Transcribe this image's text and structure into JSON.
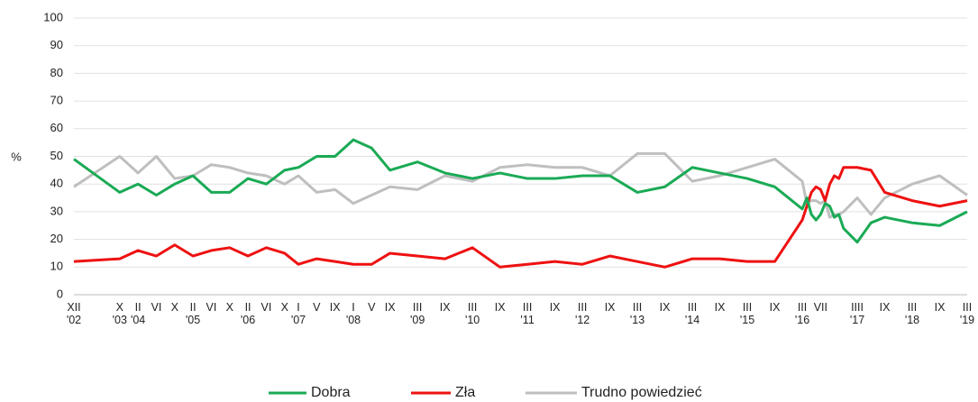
{
  "chart_data": {
    "type": "line",
    "ylabel": "%",
    "x": [
      2002.917,
      2003.75,
      2004.083,
      2004.417,
      2004.75,
      2005.083,
      2005.417,
      2005.75,
      2006.083,
      2006.417,
      2006.75,
      2007.0,
      2007.333,
      2007.667,
      2008.0,
      2008.333,
      2008.667,
      2009.167,
      2009.667,
      2010.167,
      2010.667,
      2011.167,
      2011.667,
      2012.167,
      2012.667,
      2013.167,
      2013.667,
      2014.167,
      2014.667,
      2015.167,
      2015.667,
      2016.167,
      2016.25,
      2016.333,
      2016.417,
      2016.5,
      2016.583,
      2016.667,
      2016.75,
      2016.833,
      2016.917,
      2017.167,
      2017.417,
      2017.667,
      2018.167,
      2018.667,
      2019.167
    ],
    "series": [
      {
        "name": "Dobra",
        "color": "#1aaa55",
        "values": [
          49,
          37,
          40,
          36,
          40,
          43,
          37,
          37,
          42,
          40,
          45,
          46,
          50,
          50,
          56,
          53,
          45,
          48,
          44,
          42,
          44,
          42,
          42,
          43,
          43,
          37,
          39,
          46,
          44,
          42,
          39,
          31,
          35,
          29,
          27,
          29,
          33,
          32,
          28,
          29,
          24,
          19,
          26,
          28,
          26,
          25,
          30
        ]
      },
      {
        "name": "Zła",
        "color": "#ee1111",
        "values": [
          12,
          13,
          16,
          14,
          18,
          14,
          16,
          17,
          14,
          17,
          15,
          11,
          13,
          12,
          11,
          11,
          15,
          14,
          13,
          17,
          10,
          11,
          12,
          11,
          14,
          12,
          10,
          13,
          13,
          12,
          12,
          27,
          32,
          37,
          39,
          38,
          34,
          40,
          43,
          42,
          46,
          46,
          45,
          37,
          34,
          32,
          34
        ]
      },
      {
        "name": "Trudno powiedzieć",
        "color": "#bfbfbf",
        "values": [
          39,
          50,
          44,
          50,
          42,
          43,
          47,
          46,
          44,
          43,
          40,
          43,
          37,
          38,
          33,
          36,
          39,
          38,
          43,
          41,
          46,
          47,
          46,
          46,
          43,
          51,
          51,
          41,
          43,
          46,
          49,
          41,
          33,
          34,
          34,
          33,
          34,
          28,
          29,
          29,
          30,
          35,
          29,
          35,
          40,
          43,
          36
        ]
      }
    ],
    "xlim": [
      2002.917,
      2019.167
    ],
    "xticks": [
      {
        "value": 2002.917,
        "label": "XII\n'02"
      },
      {
        "value": 2003.75,
        "label": "X\n'03"
      },
      {
        "value": 2004.083,
        "label": "II\n'04"
      },
      {
        "value": 2004.417,
        "label": "VI"
      },
      {
        "value": 2004.75,
        "label": "X"
      },
      {
        "value": 2005.083,
        "label": "II\n'05"
      },
      {
        "value": 2005.417,
        "label": "VI"
      },
      {
        "value": 2005.75,
        "label": "X"
      },
      {
        "value": 2006.083,
        "label": "II\n'06"
      },
      {
        "value": 2006.417,
        "label": "VI"
      },
      {
        "value": 2006.75,
        "label": "X"
      },
      {
        "value": 2007.0,
        "label": "I\n'07"
      },
      {
        "value": 2007.333,
        "label": "V"
      },
      {
        "value": 2007.667,
        "label": "IX"
      },
      {
        "value": 2008.0,
        "label": "I\n'08"
      },
      {
        "value": 2008.333,
        "label": "V"
      },
      {
        "value": 2008.667,
        "label": "IX"
      },
      {
        "value": 2009.167,
        "label": "III\n'09"
      },
      {
        "value": 2009.667,
        "label": "IX"
      },
      {
        "value": 2010.167,
        "label": "III\n'10"
      },
      {
        "value": 2010.667,
        "label": "IX"
      },
      {
        "value": 2011.167,
        "label": "III\n'11"
      },
      {
        "value": 2011.667,
        "label": "IX"
      },
      {
        "value": 2012.167,
        "label": "III\n'12"
      },
      {
        "value": 2012.667,
        "label": "IX"
      },
      {
        "value": 2013.167,
        "label": "III\n'13"
      },
      {
        "value": 2013.667,
        "label": "IX"
      },
      {
        "value": 2014.167,
        "label": "III\n'14"
      },
      {
        "value": 2014.667,
        "label": "IX"
      },
      {
        "value": 2015.167,
        "label": "III\n'15"
      },
      {
        "value": 2015.667,
        "label": "IX"
      },
      {
        "value": 2016.167,
        "label": "III\n'16"
      },
      {
        "value": 2016.5,
        "label": "VII"
      },
      {
        "value": 2017.167,
        "label": "IIII\n'17"
      },
      {
        "value": 2017.667,
        "label": "IX"
      },
      {
        "value": 2018.167,
        "label": "III\n'18"
      },
      {
        "value": 2018.667,
        "label": "IX"
      },
      {
        "value": 2019.167,
        "label": "III\n'19"
      }
    ],
    "ylim": [
      0,
      100
    ],
    "yticks": [
      0,
      10,
      20,
      30,
      40,
      50,
      60,
      70,
      80,
      90,
      100
    ],
    "grid": true,
    "legend": "bottom"
  }
}
